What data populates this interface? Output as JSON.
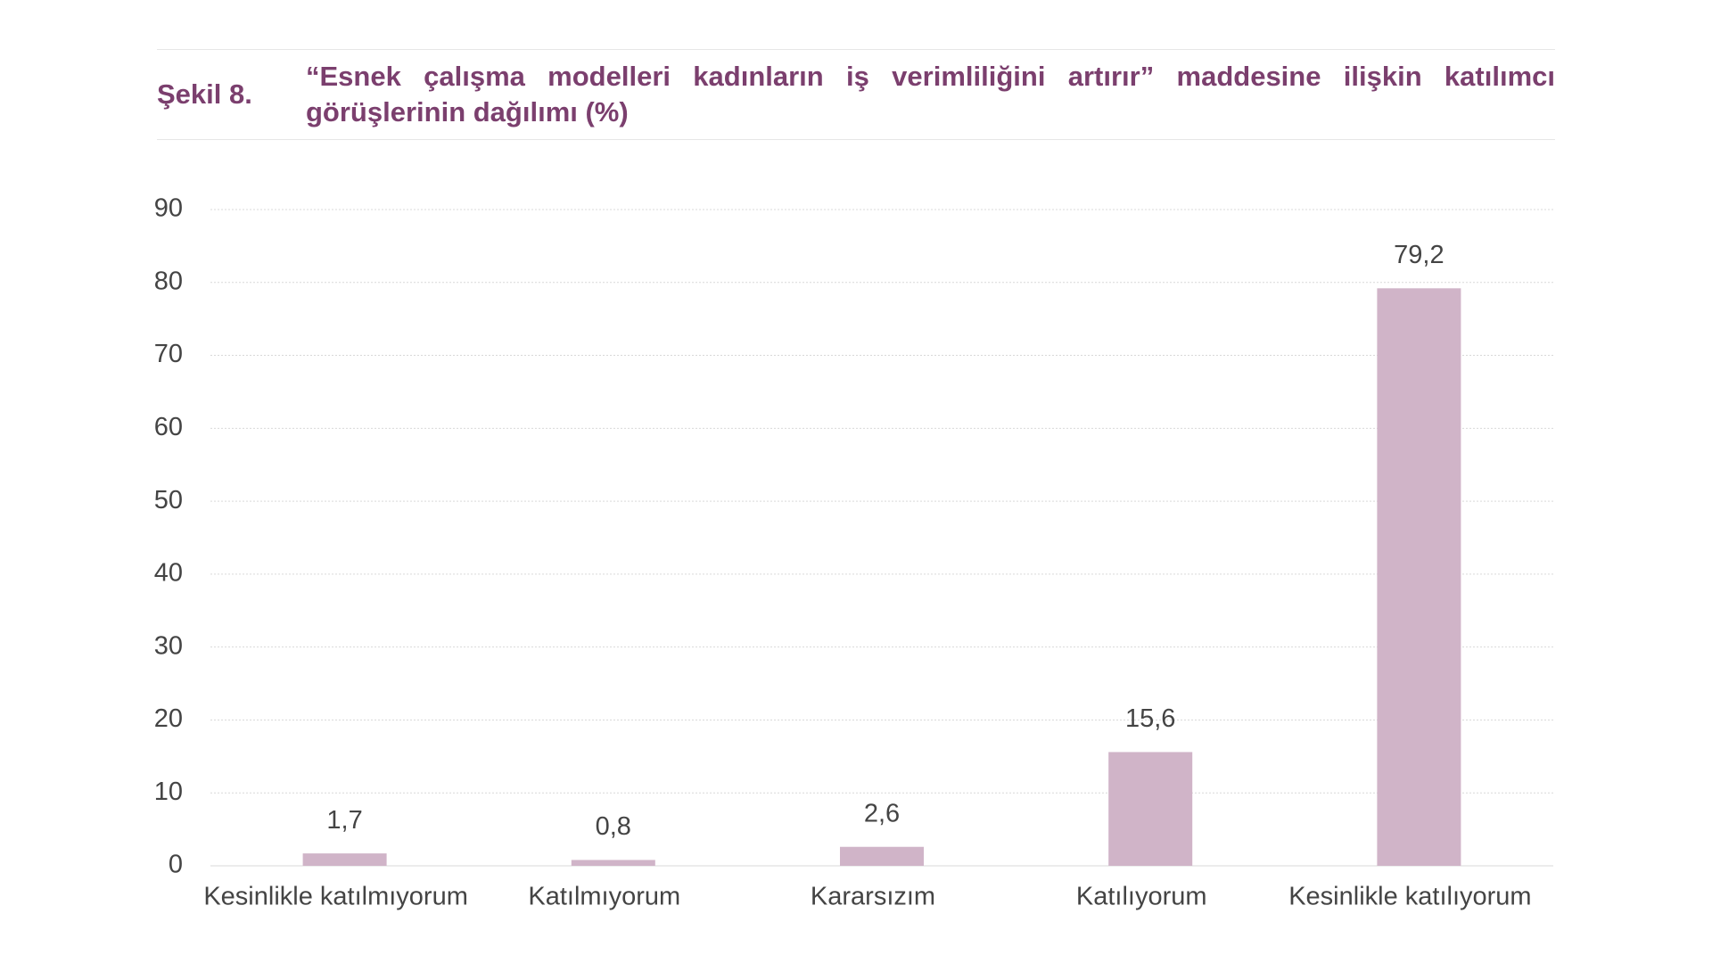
{
  "chart_data": {
    "type": "bar",
    "figure_label": "Şekil 8.",
    "title": "“Esnek çalışma modelleri kadınların iş verimliliğini artırır” maddesine ilişkin katılımcı görüşlerinin dağılımı (%)",
    "categories": [
      "Kesinlikle katılmıyorum",
      "Katılmıyorum",
      "Kararsızım",
      "Katılıyorum",
      "Kesinlikle katılıyorum"
    ],
    "values": [
      1.7,
      0.8,
      2.6,
      15.6,
      79.2
    ],
    "value_labels": [
      "1,7",
      "0,8",
      "2,6",
      "15,6",
      "79,2"
    ],
    "color": "#d0b4c8",
    "ylim": [
      0,
      90
    ],
    "yticks": [
      0,
      10,
      20,
      30,
      40,
      50,
      60,
      70,
      80,
      90
    ],
    "grid": true
  }
}
